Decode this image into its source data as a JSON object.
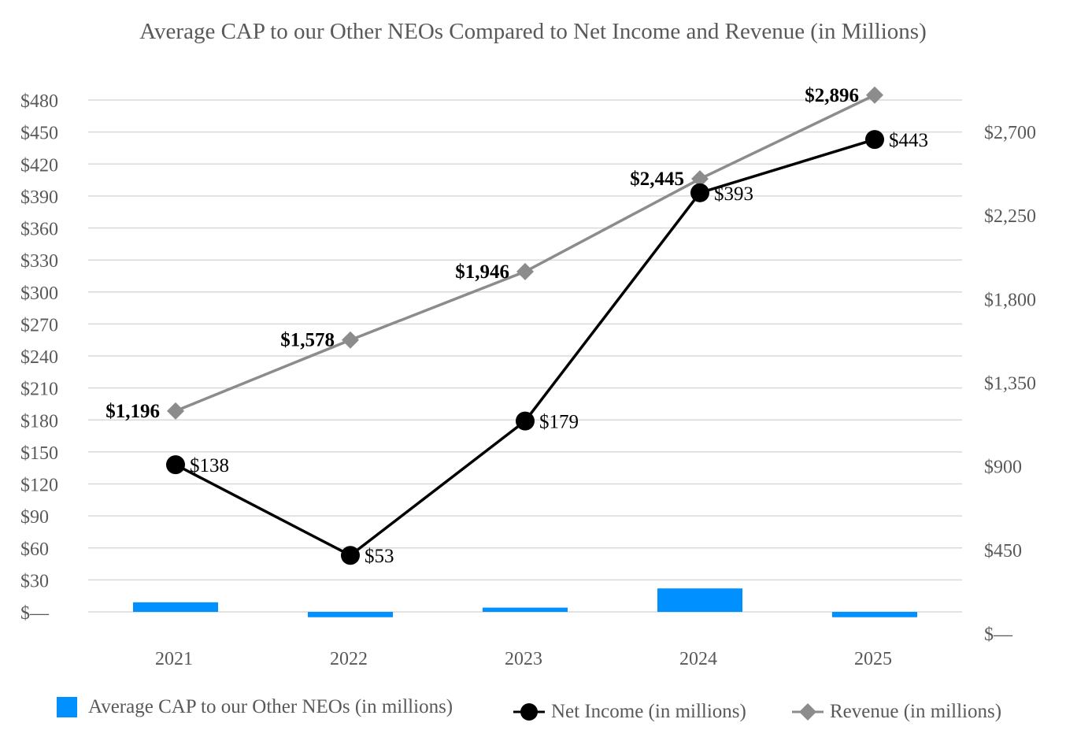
{
  "chart_data": {
    "type": "bar",
    "title": "Average CAP to our Other NEOs Compared to Net Income and Revenue (in Millions)",
    "categories": [
      "2021",
      "2022",
      "2023",
      "2024",
      "2025"
    ],
    "series": [
      {
        "name": "Average CAP to our Other NEOs (in millions)",
        "type": "bar",
        "axis": "left",
        "values": [
          9,
          -5,
          4,
          22,
          -5
        ],
        "color": "#0090ff"
      },
      {
        "name": "Net Income (in millions)",
        "type": "line",
        "axis": "left",
        "marker": "circle",
        "values": [
          138,
          53,
          179,
          393,
          443
        ],
        "labels": [
          "$138",
          "$53",
          "$179",
          "$393",
          "$443"
        ],
        "color": "#000000"
      },
      {
        "name": "Revenue (in millions)",
        "type": "line",
        "axis": "right",
        "marker": "diamond",
        "values": [
          1196,
          1578,
          1946,
          2445,
          2896
        ],
        "labels": [
          "$1,196",
          "$1,578",
          "$1,946",
          "$2,445",
          "$2,896"
        ],
        "color": "#8c8c8c"
      }
    ],
    "left_axis": {
      "ylim": [
        0,
        480
      ],
      "ticks": [
        0,
        30,
        60,
        90,
        120,
        150,
        180,
        210,
        240,
        270,
        300,
        330,
        360,
        390,
        420,
        450,
        480
      ],
      "tick_labels": [
        "$—",
        "$30",
        "$60",
        "$90",
        "$120",
        "$150",
        "$180",
        "$210",
        "$240",
        "$270",
        "$300",
        "$330",
        "$360",
        "$390",
        "$420",
        "$450",
        "$480"
      ]
    },
    "right_axis": {
      "ylim": [
        0,
        2700
      ],
      "ticks": [
        0,
        450,
        900,
        1350,
        1800,
        2250,
        2700
      ],
      "tick_labels": [
        "$—",
        "$450",
        "$900",
        "$1,350",
        "$1,800",
        "$2,250",
        "$2,700"
      ]
    },
    "grid": true,
    "legend_position": "bottom"
  }
}
